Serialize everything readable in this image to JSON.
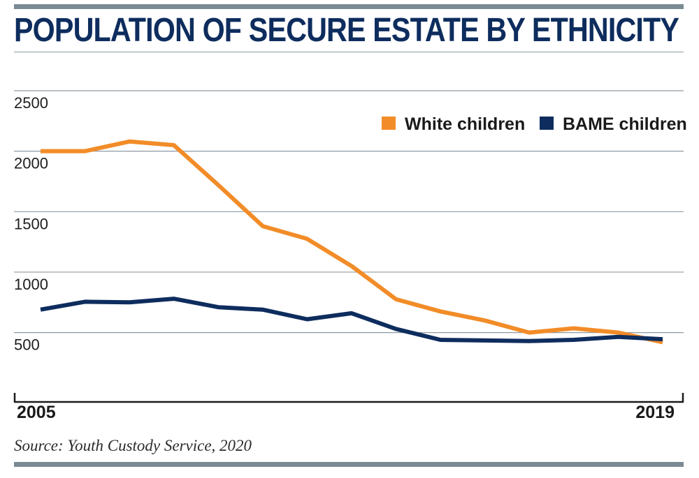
{
  "chart_data": {
    "type": "line",
    "title": "POPULATION OF SECURE ESTATE BY ETHNICITY",
    "source": "Source: Youth Custody Service, 2020",
    "x": [
      2005,
      2006,
      2007,
      2008,
      2009,
      2010,
      2011,
      2012,
      2013,
      2014,
      2015,
      2016,
      2017,
      2018,
      2019
    ],
    "x_labels": [
      "2005",
      "2019"
    ],
    "y_ticks": [
      "2500",
      "2000",
      "1500",
      "1000",
      "500"
    ],
    "ylim": [
      0,
      2500
    ],
    "grid": true,
    "legend_position": "top-right",
    "series": [
      {
        "name": "White children",
        "color": "#f28c28",
        "values": [
          2000,
          2000,
          2080,
          2050,
          1720,
          1380,
          1275,
          1050,
          775,
          675,
          600,
          500,
          535,
          500,
          420
        ]
      },
      {
        "name": "BAME children",
        "color": "#0e2d5e",
        "values": [
          690,
          755,
          750,
          780,
          710,
          690,
          610,
          660,
          530,
          440,
          435,
          430,
          440,
          465,
          445
        ]
      }
    ]
  }
}
